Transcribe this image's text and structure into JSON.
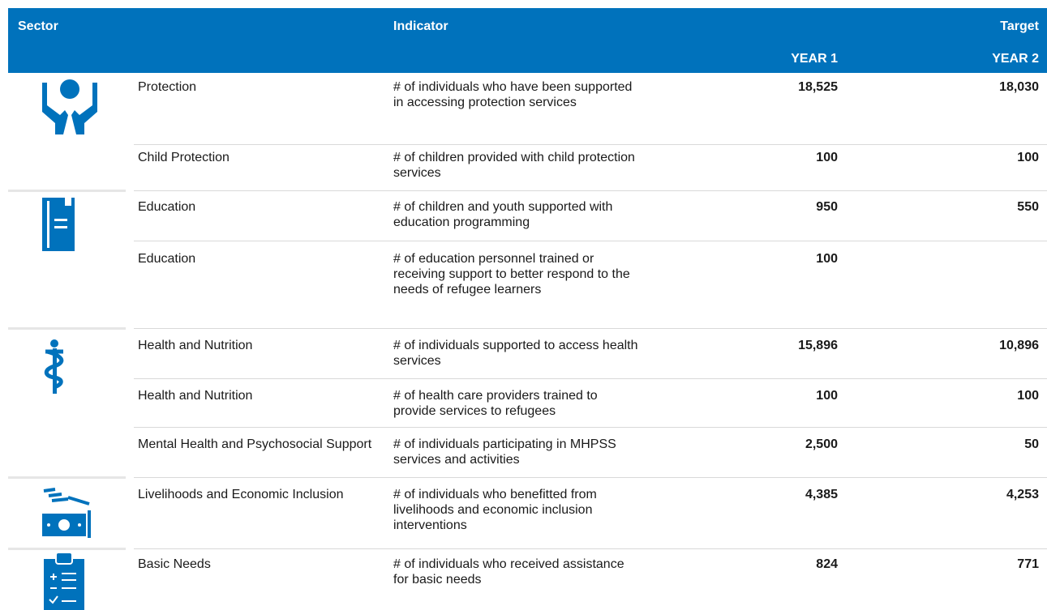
{
  "header": {
    "sector": "Sector",
    "indicator": "Indicator",
    "target": "Target",
    "year1": "YEAR 1",
    "year2": "YEAR 2"
  },
  "table": {
    "rows": [
      [
        "Protection",
        "# of individuals who have been supported in accessing protection services",
        "18,525",
        "18,030"
      ],
      [
        "Child Protection",
        "# of children provided with child protection services",
        "100",
        "100"
      ],
      [
        "Education",
        "# of children and youth supported with education programming",
        "950",
        "550"
      ],
      [
        "Education",
        "# of education personnel trained or receiving support to better respond to the needs of refugee learners",
        "100",
        null
      ],
      [
        "Health and Nutrition",
        "# of individuals supported to access health services",
        "15,896",
        "10,896"
      ],
      [
        "Health and Nutrition",
        "# of health care providers trained to provide services to refugees",
        "100",
        "100"
      ],
      [
        "Mental Health and Psychosocial Support",
        "# of individuals participating in MHPSS services and activities",
        "2,500",
        "50"
      ],
      [
        "Livelihoods and Economic Inclusion",
        "# of individuals who benefitted from livelihoods and economic inclusion interventions",
        "4,385",
        "4,253"
      ],
      [
        "Basic Needs",
        "# of individuals who received assistance for basic needs",
        "824",
        "771"
      ]
    ]
  }
}
